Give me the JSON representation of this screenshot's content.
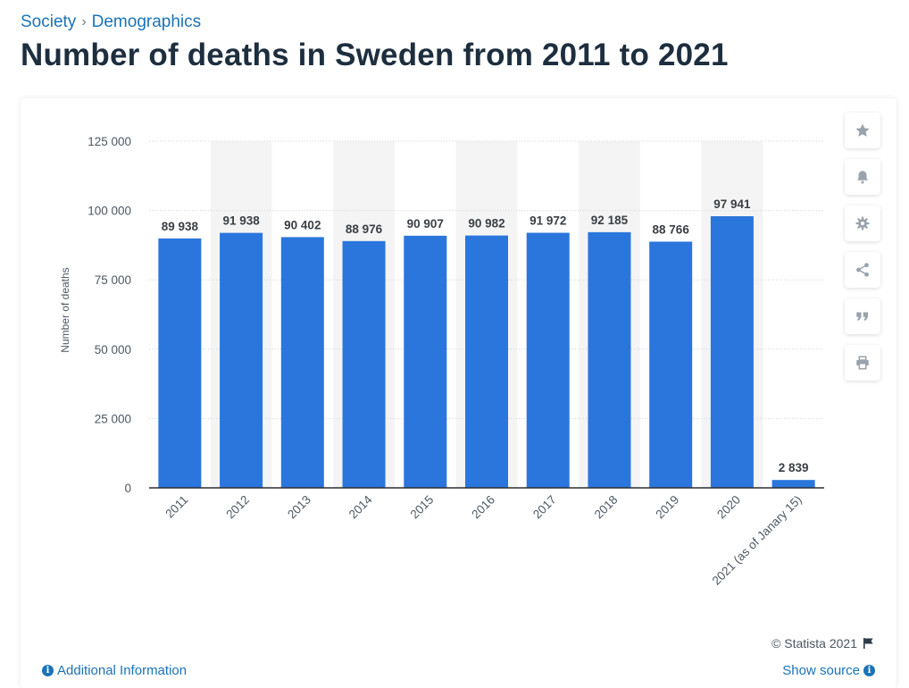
{
  "breadcrumb": {
    "parent": "Society",
    "separator": "›",
    "current": "Demographics"
  },
  "title": "Number of deaths in Sweden from 2011 to 2021",
  "toolbar": {
    "items": [
      {
        "name": "favorite",
        "icon": "star-icon"
      },
      {
        "name": "notification",
        "icon": "bell-icon"
      },
      {
        "name": "settings",
        "icon": "gear-icon"
      },
      {
        "name": "share",
        "icon": "share-icon"
      },
      {
        "name": "cite",
        "icon": "quote-icon"
      },
      {
        "name": "print",
        "icon": "print-icon"
      }
    ]
  },
  "footer": {
    "copyright": "© Statista 2021",
    "additional_info": "Additional Information",
    "show_source": "Show source"
  },
  "colors": {
    "bar": "#2a76dd",
    "accent": "#1a73b8",
    "band": "#f4f4f4"
  },
  "chart_data": {
    "type": "bar",
    "title": "Number of deaths in Sweden from 2011 to 2021",
    "xlabel": "",
    "ylabel": "Number of deaths",
    "ylim": [
      0,
      125000
    ],
    "yticks": [
      0,
      25000,
      50000,
      75000,
      100000,
      125000
    ],
    "ytick_labels": [
      "0",
      "25 000",
      "50 000",
      "75 000",
      "100 000",
      "125 000"
    ],
    "categories": [
      "2011",
      "2012",
      "2013",
      "2014",
      "2015",
      "2016",
      "2017",
      "2018",
      "2019",
      "2020",
      "2021 (as of Janary 15)"
    ],
    "values": [
      89938,
      91938,
      90402,
      88976,
      90907,
      90982,
      91972,
      92185,
      88766,
      97941,
      2839
    ],
    "value_labels": [
      "89 938",
      "91 938",
      "90 402",
      "88 976",
      "90 907",
      "90 982",
      "91 972",
      "92 185",
      "88 766",
      "97 941",
      "2 839"
    ],
    "grid": true
  }
}
